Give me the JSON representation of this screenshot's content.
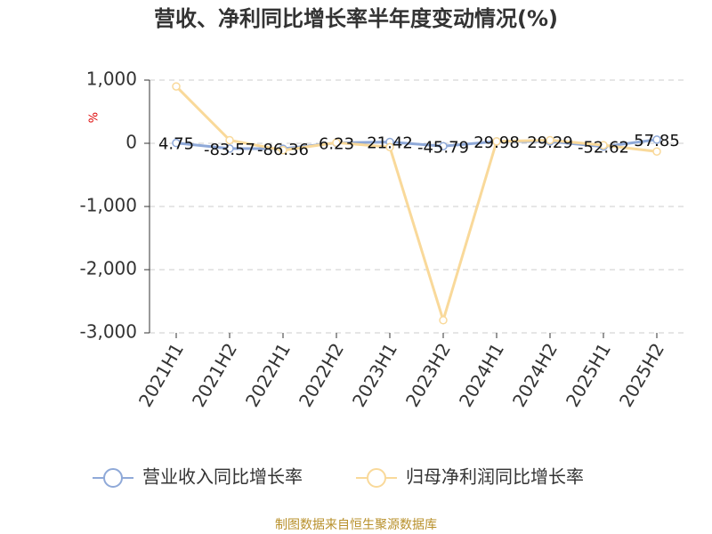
{
  "chart_data": {
    "type": "line",
    "title": "营收、净利同比增长率半年度变动情况(%)",
    "y_unit": "%",
    "source": "制图数据来自恒生聚源数据库",
    "categories": [
      "2021H1",
      "2021H2",
      "2022H1",
      "2022H2",
      "2023H1",
      "2023H2",
      "2024H1",
      "2024H2",
      "2025H1",
      "2025H2"
    ],
    "series": [
      {
        "name": "营业收入同比增长率",
        "color": "#8fa9d8",
        "values": [
          4.75,
          -83.57,
          -86.36,
          6.23,
          21.42,
          -45.79,
          29.98,
          29.29,
          -52.62,
          57.85
        ],
        "show_labels": true
      },
      {
        "name": "归母净利润同比增长率",
        "color": "#f9d99a",
        "values": [
          900,
          50,
          -110,
          10,
          -60,
          -2800,
          30,
          50,
          -30,
          -130
        ],
        "show_labels": false
      }
    ],
    "ylim": [
      -3000,
      1000
    ],
    "yticks": [
      {
        "value": 1000,
        "label": "1,000"
      },
      0,
      {
        "value": -1000,
        "label": "-1,000"
      },
      {
        "value": -2000,
        "label": "-2,000"
      },
      {
        "value": -3000,
        "label": "-3,000"
      }
    ],
    "grid": true
  }
}
